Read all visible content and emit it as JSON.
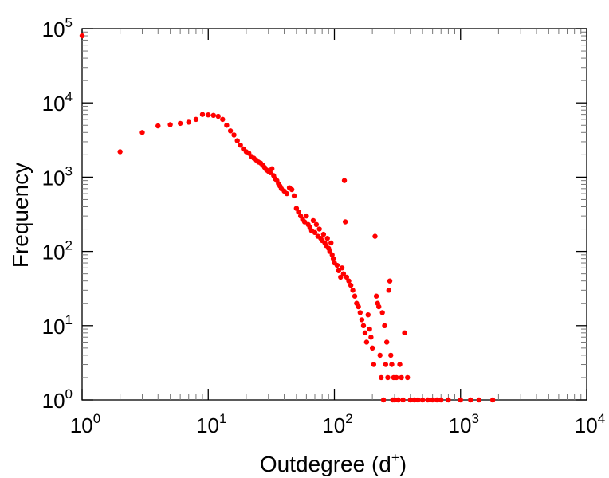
{
  "chart_data": {
    "type": "scatter",
    "xlabel": "Outdegree (d",
    "xlabel_sup": "+",
    "xlabel_close": ")",
    "ylabel": "Frequency",
    "x_scale": "log",
    "y_scale": "log",
    "xlim": [
      1,
      10000
    ],
    "ylim": [
      1,
      100000
    ],
    "grid": false,
    "point_color": "#ff0000",
    "x_ticks": [
      {
        "base": "10",
        "exp": "0",
        "value": 1
      },
      {
        "base": "10",
        "exp": "1",
        "value": 10
      },
      {
        "base": "10",
        "exp": "2",
        "value": 100
      },
      {
        "base": "10",
        "exp": "3",
        "value": 1000
      },
      {
        "base": "10",
        "exp": "4",
        "value": 10000
      }
    ],
    "y_ticks": [
      {
        "base": "10",
        "exp": "0",
        "value": 1
      },
      {
        "base": "10",
        "exp": "1",
        "value": 10
      },
      {
        "base": "10",
        "exp": "2",
        "value": 100
      },
      {
        "base": "10",
        "exp": "3",
        "value": 1000
      },
      {
        "base": "10",
        "exp": "4",
        "value": 10000
      },
      {
        "base": "10",
        "exp": "5",
        "value": 100000
      }
    ],
    "points": [
      [
        1,
        80000
      ],
      [
        2,
        2200
      ],
      [
        3,
        4000
      ],
      [
        4,
        4900
      ],
      [
        5,
        5100
      ],
      [
        6,
        5300
      ],
      [
        7,
        5500
      ],
      [
        8,
        6000
      ],
      [
        9,
        7000
      ],
      [
        10,
        6900
      ],
      [
        11,
        6800
      ],
      [
        12,
        6600
      ],
      [
        13,
        6000
      ],
      [
        14,
        5000
      ],
      [
        15,
        4200
      ],
      [
        16,
        3700
      ],
      [
        17,
        3100
      ],
      [
        18,
        2700
      ],
      [
        19,
        2400
      ],
      [
        20,
        2200
      ],
      [
        21,
        2100
      ],
      [
        22,
        1900
      ],
      [
        23,
        1800
      ],
      [
        24,
        1700
      ],
      [
        25,
        1600
      ],
      [
        26,
        1550
      ],
      [
        27,
        1450
      ],
      [
        28,
        1350
      ],
      [
        29,
        1250
      ],
      [
        30,
        1200
      ],
      [
        31,
        1150
      ],
      [
        32,
        1300
      ],
      [
        33,
        1050
      ],
      [
        34,
        950
      ],
      [
        35,
        900
      ],
      [
        36,
        820
      ],
      [
        37,
        760
      ],
      [
        38,
        700
      ],
      [
        40,
        650
      ],
      [
        42,
        600
      ],
      [
        44,
        720
      ],
      [
        46,
        680
      ],
      [
        48,
        560
      ],
      [
        50,
        380
      ],
      [
        52,
        340
      ],
      [
        54,
        300
      ],
      [
        56,
        270
      ],
      [
        58,
        250
      ],
      [
        60,
        300
      ],
      [
        62,
        230
      ],
      [
        64,
        210
      ],
      [
        66,
        190
      ],
      [
        68,
        260
      ],
      [
        70,
        180
      ],
      [
        72,
        230
      ],
      [
        74,
        160
      ],
      [
        76,
        200
      ],
      [
        78,
        150
      ],
      [
        80,
        140
      ],
      [
        82,
        170
      ],
      [
        84,
        130
      ],
      [
        86,
        120
      ],
      [
        88,
        150
      ],
      [
        90,
        110
      ],
      [
        92,
        100
      ],
      [
        94,
        130
      ],
      [
        96,
        90
      ],
      [
        98,
        80
      ],
      [
        100,
        70
      ],
      [
        105,
        65
      ],
      [
        108,
        55
      ],
      [
        112,
        45
      ],
      [
        115,
        60
      ],
      [
        118,
        50
      ],
      [
        120,
        900
      ],
      [
        122,
        250
      ],
      [
        125,
        45
      ],
      [
        130,
        40
      ],
      [
        135,
        35
      ],
      [
        140,
        30
      ],
      [
        145,
        25
      ],
      [
        150,
        20
      ],
      [
        155,
        18
      ],
      [
        160,
        15
      ],
      [
        165,
        12
      ],
      [
        170,
        10
      ],
      [
        175,
        8
      ],
      [
        180,
        6
      ],
      [
        185,
        14
      ],
      [
        190,
        9
      ],
      [
        195,
        7
      ],
      [
        200,
        5
      ],
      [
        205,
        3
      ],
      [
        210,
        160
      ],
      [
        215,
        25
      ],
      [
        220,
        20
      ],
      [
        225,
        18
      ],
      [
        230,
        4
      ],
      [
        235,
        2
      ],
      [
        240,
        15
      ],
      [
        245,
        1
      ],
      [
        250,
        10
      ],
      [
        255,
        3
      ],
      [
        260,
        6
      ],
      [
        265,
        2
      ],
      [
        270,
        30
      ],
      [
        275,
        40
      ],
      [
        280,
        4
      ],
      [
        285,
        3
      ],
      [
        290,
        1
      ],
      [
        295,
        2
      ],
      [
        300,
        1
      ],
      [
        310,
        2
      ],
      [
        320,
        1
      ],
      [
        330,
        3
      ],
      [
        340,
        2
      ],
      [
        350,
        1
      ],
      [
        360,
        8
      ],
      [
        380,
        2
      ],
      [
        400,
        1
      ],
      [
        430,
        1
      ],
      [
        460,
        1
      ],
      [
        500,
        1
      ],
      [
        550,
        1
      ],
      [
        600,
        1
      ],
      [
        650,
        1
      ],
      [
        700,
        1
      ],
      [
        800,
        1
      ],
      [
        1000,
        1
      ],
      [
        1200,
        1
      ],
      [
        1400,
        1
      ],
      [
        1800,
        1
      ]
    ]
  }
}
